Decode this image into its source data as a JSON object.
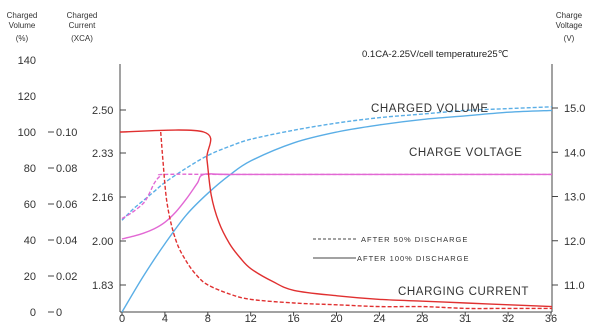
{
  "chart_data": {
    "type": "line",
    "condition": "0.1CA-2.25V/cell   temperature25",
    "condition_unit": "℃",
    "axes": {
      "charged_volume": {
        "title_line1": "Charged",
        "title_line2": "Volume",
        "unit": "(%)",
        "ticks": [
          "0",
          "20",
          "40",
          "60",
          "80",
          "100",
          "120",
          "140"
        ]
      },
      "charged_current": {
        "title_line1": "Charged",
        "title_line2": "Current",
        "unit": "(XCA)",
        "ticks": [
          "0",
          "0.02",
          "0.04",
          "0.06",
          "0.08",
          "0.10"
        ]
      },
      "cell_voltage": {
        "ticks": [
          "1.83",
          "2.00",
          "2.16",
          "2.33",
          "2.50"
        ]
      },
      "charge_voltage": {
        "title_line1": "Charge",
        "title_line2": "Voltage",
        "unit": "(V)",
        "ticks": [
          "11.0",
          "12.0",
          "13.0",
          "14.0",
          "15.0"
        ]
      },
      "x": {
        "ticks": [
          "0",
          "4",
          "8",
          "12",
          "16",
          "20",
          "24",
          "28",
          "31",
          "32",
          "36"
        ],
        "range": [
          0,
          40
        ]
      }
    },
    "curve_labels": {
      "charged_volume": "CHARGED VOLUME",
      "charge_voltage": "CHARGE VOLTAGE",
      "charging_current": "CHARGING CURRENT"
    },
    "legend": [
      {
        "label": "AFTER 50% DISCHARGE",
        "style": "dashed"
      },
      {
        "label": "AFTER 100% DISCHARGE",
        "style": "solid"
      }
    ],
    "series": [
      {
        "curve": "charged_volume",
        "case": "100",
        "axis": "charged_volume",
        "color": "#5aaee6",
        "dash": false,
        "x": [
          0,
          2,
          4,
          6,
          8,
          10,
          12,
          16,
          20,
          24,
          28,
          32,
          36,
          40
        ],
        "y": [
          0,
          20,
          38,
          54,
          66,
          76,
          84,
          94,
          100,
          104,
          107,
          109,
          111,
          112
        ]
      },
      {
        "curve": "charged_volume",
        "case": "50",
        "axis": "charged_volume",
        "color": "#5aaee6",
        "dash": true,
        "x": [
          0,
          1,
          2,
          3,
          4,
          6,
          8,
          10,
          12,
          16,
          20,
          24,
          28,
          32,
          36,
          40
        ],
        "y": [
          51,
          57,
          62,
          67,
          72,
          80,
          87,
          92,
          96,
          101,
          105,
          108,
          110,
          112,
          113,
          114
        ]
      },
      {
        "curve": "charge_voltage",
        "case": "100",
        "axis": "charge_voltage",
        "color": "#e268d4",
        "dash": false,
        "x": [
          0,
          1,
          2,
          3,
          4,
          5,
          6,
          7,
          7.6,
          10,
          20,
          30,
          40
        ],
        "y": [
          12.04,
          12.1,
          12.17,
          12.27,
          12.42,
          12.65,
          12.95,
          13.3,
          13.5,
          13.5,
          13.5,
          13.5,
          13.5
        ]
      },
      {
        "curve": "charge_voltage",
        "case": "50",
        "axis": "charge_voltage",
        "color": "#e268d4",
        "dash": true,
        "x": [
          0,
          1,
          2,
          2.5,
          3,
          3.5,
          4,
          10,
          20,
          30,
          40
        ],
        "y": [
          12.5,
          12.65,
          12.85,
          13.05,
          13.3,
          13.45,
          13.5,
          13.5,
          13.5,
          13.5,
          13.5
        ]
      },
      {
        "curve": "charging_current",
        "case": "100",
        "axis": "charged_current",
        "color": "#e03030",
        "dash": false,
        "x": [
          -0.2,
          7.6,
          7.9,
          8.3,
          9,
          10,
          11,
          12,
          14,
          16,
          20,
          24,
          28,
          32,
          36,
          40
        ],
        "y": [
          0.1,
          0.1,
          0.085,
          0.065,
          0.05,
          0.038,
          0.03,
          0.024,
          0.017,
          0.012,
          0.009,
          0.007,
          0.006,
          0.005,
          0.004,
          0.003
        ]
      },
      {
        "curve": "charging_current",
        "case": "50",
        "axis": "charged_current",
        "color": "#e03030",
        "dash": true,
        "x": [
          3.6,
          3.8,
          4.2,
          5,
          6,
          7,
          8,
          10,
          12,
          16,
          20,
          24,
          28,
          32,
          36,
          40
        ],
        "y": [
          0.1,
          0.085,
          0.06,
          0.04,
          0.028,
          0.02,
          0.015,
          0.01,
          0.007,
          0.005,
          0.004,
          0.003,
          0.003,
          0.002,
          0.002,
          0.002
        ]
      }
    ]
  }
}
